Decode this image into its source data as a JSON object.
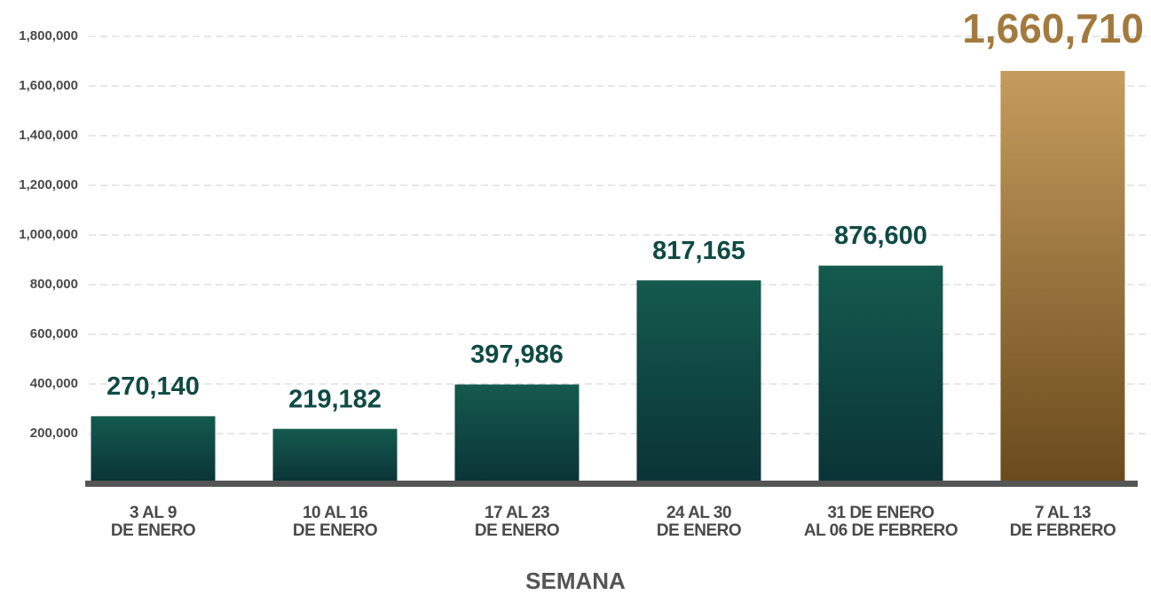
{
  "chart_data": {
    "type": "bar",
    "categories": [
      "3 AL 9\nDE ENERO",
      "10 AL 16\nDE ENERO",
      "17 AL 23\nDE ENERO",
      "24 AL 30\nDE ENERO",
      "31  DE ENERO\nAL 06 DE FEBRERO",
      "7 AL 13\nDE FEBRERO"
    ],
    "values": [
      270140,
      219182,
      397986,
      817165,
      876600,
      1660710
    ],
    "value_labels": [
      "270,140",
      "219,182",
      "397,986",
      "817,165",
      "876,600",
      "1,660,710"
    ],
    "colors": [
      "#0f4a44",
      "#0f4a44",
      "#0f4a44",
      "#0f4a44",
      "#0f4a44",
      "#a37a3e"
    ],
    "xlabel": "SEMANA",
    "ylim": [
      0,
      1800000
    ],
    "yticks": [
      {
        "value": 200000,
        "label": "200,000"
      },
      {
        "value": 400000,
        "label": "400,000"
      },
      {
        "value": 600000,
        "label": "600,000"
      },
      {
        "value": 800000,
        "label": "800,000"
      },
      {
        "value": 1000000,
        "label": "1,000,000"
      },
      {
        "value": 1200000,
        "label": "1,200,000"
      },
      {
        "value": 1400000,
        "label": "1,400,000"
      },
      {
        "value": 1600000,
        "label": "1,600,000"
      },
      {
        "value": 1800000,
        "label": "1,800,000"
      }
    ],
    "grid": true
  }
}
